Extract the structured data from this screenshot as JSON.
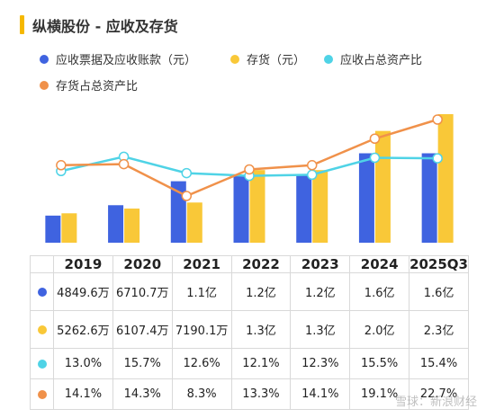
{
  "title": "纵横股份 - 应收及存货",
  "legend": [
    {
      "label": "应收票据及应收账款（元）",
      "color": "#3f63e0"
    },
    {
      "label": "存货（元）",
      "color": "#f9c838"
    },
    {
      "label": "应收占总资产比",
      "color": "#4fd3e6"
    },
    {
      "label": "存货占总资产比",
      "color": "#f0914a"
    }
  ],
  "chart_data": {
    "type": "bar",
    "categories": [
      "2019",
      "2020",
      "2021",
      "2022",
      "2023",
      "2024",
      "2025Q3"
    ],
    "series": [
      {
        "name": "应收票据及应收账款（元）",
        "kind": "bar",
        "color": "#3f63e0",
        "values": [
          48496000,
          67107000,
          110000000,
          120000000,
          120000000,
          160000000,
          160000000
        ],
        "labels": [
          "4849.6万",
          "6710.7万",
          "1.1亿",
          "1.2亿",
          "1.2亿",
          "1.6亿",
          "1.6亿"
        ]
      },
      {
        "name": "存货（元）",
        "kind": "bar",
        "color": "#f9c838",
        "values": [
          52626000,
          61074000,
          71901000,
          130000000,
          130000000,
          200000000,
          230000000
        ],
        "labels": [
          "5262.6万",
          "6107.4万",
          "7190.1万",
          "1.3亿",
          "1.3亿",
          "2.0亿",
          "2.3亿"
        ]
      },
      {
        "name": "应收占总资产比",
        "kind": "line",
        "color": "#4fd3e6",
        "values": [
          13.0,
          15.7,
          12.6,
          12.1,
          12.3,
          15.5,
          15.4
        ],
        "labels": [
          "13.0%",
          "15.7%",
          "12.6%",
          "12.1%",
          "12.3%",
          "15.5%",
          "15.4%"
        ]
      },
      {
        "name": "存货占总资产比",
        "kind": "line",
        "color": "#f0914a",
        "values": [
          14.1,
          14.3,
          8.3,
          13.3,
          14.1,
          19.1,
          22.7
        ],
        "labels": [
          "14.1%",
          "14.3%",
          "8.3%",
          "13.3%",
          "14.1%",
          "19.1%",
          "22.7%"
        ]
      }
    ],
    "grid": false
  },
  "watermark": "雪球：新浪财经"
}
